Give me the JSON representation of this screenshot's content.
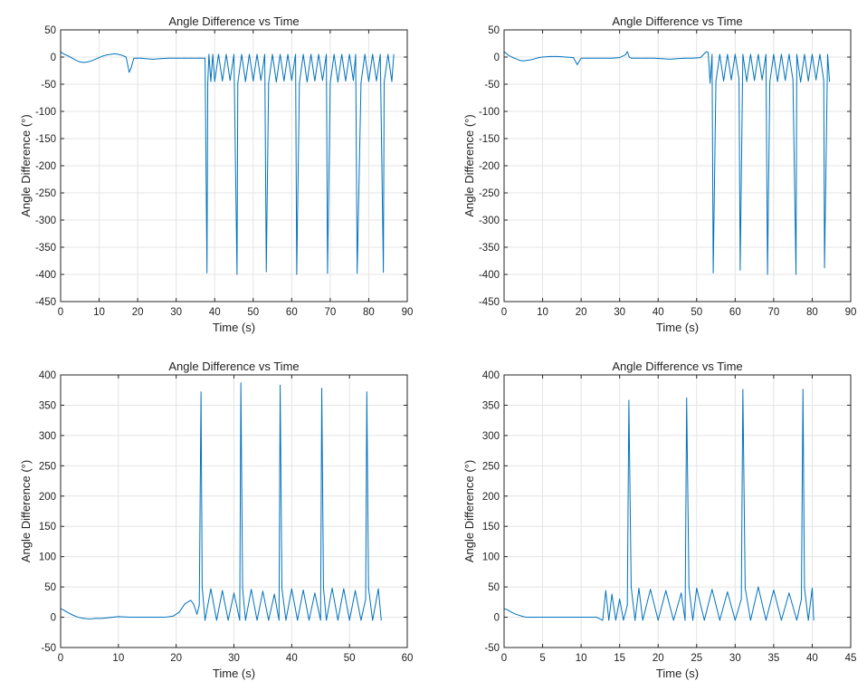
{
  "figure": {
    "background": "#ffffff",
    "line_color": "#0072BD",
    "grid_color": "#e4e4e4",
    "axes_color": "#262626"
  },
  "chart_data": [
    {
      "type": "line",
      "title": "Angle Difference vs Time",
      "xlabel": "Time (s)",
      "ylabel": "Angle Difference (°)",
      "xlim": [
        0,
        90
      ],
      "ylim": [
        -450,
        50
      ],
      "xticks": [
        0,
        10,
        20,
        30,
        40,
        50,
        60,
        70,
        80,
        90
      ],
      "yticks": [
        50,
        0,
        -50,
        -100,
        -150,
        -200,
        -250,
        -300,
        -350,
        -400,
        -450
      ],
      "grid": true,
      "series": [
        {
          "color": "#0072BD",
          "x": [
            0,
            0.5,
            1,
            2,
            3,
            4,
            5,
            6,
            7,
            8,
            9,
            10,
            11,
            12,
            13,
            14,
            15,
            16,
            17,
            17.8,
            18.3,
            19,
            20,
            21,
            22,
            24,
            26,
            28,
            30,
            32,
            34,
            36,
            37.5,
            38,
            38.2,
            38.5,
            39,
            39.5,
            40,
            41,
            42,
            43,
            44,
            45,
            45.8,
            46,
            47,
            48,
            49,
            50,
            51,
            52,
            53,
            53.4,
            54,
            55,
            56,
            57,
            58,
            59,
            60,
            61,
            61.3,
            62,
            63,
            64,
            65,
            66,
            67,
            68,
            69,
            69.3,
            70,
            71,
            72,
            73,
            74,
            75,
            76,
            76.6,
            77,
            78,
            79,
            80,
            81,
            82,
            83,
            83.8,
            84,
            85,
            86,
            86.5
          ],
          "y": [
            10,
            7,
            5,
            2,
            -2,
            -6,
            -9,
            -10,
            -9,
            -7,
            -4,
            -1,
            2,
            4,
            5,
            6,
            5,
            3,
            0,
            -28,
            -20,
            -2,
            -2,
            -2,
            -3,
            -4,
            -3,
            -2,
            -2,
            -2,
            -2,
            -2,
            -2,
            -397,
            -48,
            5,
            -45,
            5,
            -45,
            5,
            -44,
            5,
            -43,
            5,
            -400,
            -48,
            5,
            -45,
            5,
            -44,
            5,
            -43,
            5,
            -395,
            -48,
            5,
            -46,
            5,
            -44,
            5,
            -43,
            5,
            -400,
            -48,
            5,
            -46,
            5,
            -44,
            5,
            -43,
            5,
            -398,
            -48,
            5,
            -46,
            5,
            -44,
            5,
            -43,
            5,
            -398,
            -47,
            5,
            -45,
            5,
            -44,
            5,
            -396,
            -47,
            5,
            -45,
            5
          ]
        }
      ]
    },
    {
      "type": "line",
      "title": "Angle Difference vs Time",
      "xlabel": "Time (s)",
      "ylabel": "Angle Difference (°)",
      "xlim": [
        0,
        90
      ],
      "ylim": [
        -450,
        50
      ],
      "xticks": [
        0,
        10,
        20,
        30,
        40,
        50,
        60,
        70,
        80,
        90
      ],
      "yticks": [
        50,
        0,
        -50,
        -100,
        -150,
        -200,
        -250,
        -300,
        -350,
        -400,
        -450
      ],
      "grid": true,
      "series": [
        {
          "color": "#0072BD",
          "x": [
            0,
            0.5,
            1,
            2,
            3,
            4,
            5,
            6,
            7,
            8,
            9,
            10,
            12,
            14,
            16,
            18,
            19,
            19.5,
            20,
            22,
            24,
            26,
            28,
            30,
            31.5,
            32,
            32.5,
            33,
            35,
            37,
            39,
            41,
            43,
            45,
            47,
            49,
            51,
            52.5,
            53,
            53.5,
            54,
            54.3,
            55,
            56,
            57,
            58,
            59,
            60,
            61,
            61.3,
            62,
            63,
            64,
            65,
            66,
            67,
            68,
            68.4,
            69,
            70,
            71,
            72,
            73,
            74,
            75,
            75.8,
            76,
            77,
            78,
            79,
            80,
            81,
            82,
            83,
            83.2,
            84,
            84.5
          ],
          "y": [
            10,
            7,
            4,
            0,
            -3,
            -6,
            -7,
            -6,
            -5,
            -3,
            -1,
            0,
            1,
            1,
            0,
            -1,
            -14,
            -8,
            -2,
            -2,
            -2,
            -2,
            -2,
            -1,
            4,
            10,
            0,
            -2,
            -2,
            -2,
            -2,
            -3,
            -4,
            -3,
            -2,
            -2,
            -1,
            10,
            8,
            -48,
            5,
            -397,
            -45,
            5,
            -44,
            5,
            -42,
            5,
            -40,
            -392,
            5,
            -45,
            5,
            -43,
            5,
            -42,
            5,
            -400,
            -46,
            5,
            -45,
            5,
            -43,
            5,
            -42,
            -400,
            5,
            -46,
            5,
            -44,
            5,
            -42,
            5,
            -43,
            -388,
            5,
            -45
          ]
        }
      ]
    },
    {
      "type": "line",
      "title": "Angle Difference vs Time",
      "xlabel": "Time (s)",
      "ylabel": "Angle Difference (°)",
      "xlim": [
        0,
        60
      ],
      "ylim": [
        -50,
        400
      ],
      "xticks": [
        0,
        10,
        20,
        30,
        40,
        50,
        60
      ],
      "yticks": [
        400,
        350,
        300,
        250,
        200,
        150,
        100,
        50,
        0,
        -50
      ],
      "grid": true,
      "series": [
        {
          "color": "#0072BD",
          "x": [
            0,
            0.5,
            1,
            2,
            3,
            4,
            5,
            6,
            7,
            8,
            10,
            12,
            14,
            16,
            18,
            19.5,
            20.5,
            21.5,
            22.5,
            23,
            23.6,
            24,
            24.3,
            24.5,
            25,
            26,
            27,
            28,
            29,
            30,
            31,
            31.2,
            31.5,
            32,
            33,
            34,
            35,
            36,
            37,
            37.8,
            38,
            38.3,
            39,
            40,
            41,
            42,
            43,
            44,
            45,
            45.2,
            45.5,
            46,
            47,
            48,
            49,
            50,
            51,
            52,
            52.8,
            53,
            53.3,
            54,
            55,
            55.5
          ],
          "y": [
            14,
            12,
            9,
            4,
            0,
            -2,
            -3,
            -2,
            -2,
            -1,
            1,
            0,
            0,
            0,
            0,
            2,
            8,
            22,
            28,
            22,
            5,
            20,
            372,
            50,
            -5,
            47,
            -5,
            44,
            -5,
            40,
            -5,
            387,
            48,
            -5,
            46,
            -5,
            43,
            -5,
            38,
            -5,
            383,
            48,
            -5,
            47,
            -5,
            45,
            -5,
            40,
            -5,
            378,
            49,
            -5,
            48,
            -5,
            47,
            -5,
            44,
            -5,
            30,
            372,
            48,
            -5,
            47,
            -5
          ]
        }
      ]
    },
    {
      "type": "line",
      "title": "Angle Difference vs Time",
      "xlabel": "Time (s)",
      "ylabel": "Angle Difference (°)",
      "xlim": [
        0,
        45
      ],
      "ylim": [
        -50,
        400
      ],
      "xticks": [
        0,
        5,
        10,
        15,
        20,
        25,
        30,
        35,
        40,
        45
      ],
      "yticks": [
        400,
        350,
        300,
        250,
        200,
        150,
        100,
        50,
        0,
        -50
      ],
      "grid": true,
      "series": [
        {
          "color": "#0072BD",
          "x": [
            0,
            0.3,
            0.6,
            1,
            1.5,
            2,
            2.5,
            3,
            4,
            6,
            8,
            10,
            12,
            12.8,
            13.2,
            13.6,
            14,
            14.5,
            15,
            15.5,
            16,
            16.2,
            16.5,
            17,
            17.5,
            18,
            19,
            20,
            21,
            22,
            23,
            23.5,
            23.7,
            24,
            24.5,
            25,
            26,
            27,
            28,
            29,
            30,
            30.8,
            31,
            31.3,
            32,
            33,
            34,
            35,
            36,
            37,
            38,
            38.6,
            38.8,
            39,
            39.5,
            40,
            40.2
          ],
          "y": [
            14,
            13,
            11,
            8,
            5,
            3,
            1,
            0,
            0,
            0,
            0,
            0,
            0,
            -5,
            44,
            -5,
            38,
            -5,
            30,
            -5,
            20,
            358,
            50,
            -5,
            48,
            -5,
            46,
            -5,
            44,
            -5,
            40,
            -5,
            362,
            50,
            -5,
            48,
            -5,
            46,
            -5,
            42,
            -5,
            30,
            376,
            48,
            -5,
            50,
            -5,
            45,
            -5,
            40,
            -5,
            30,
            376,
            48,
            -5,
            48,
            -5
          ]
        }
      ]
    }
  ]
}
